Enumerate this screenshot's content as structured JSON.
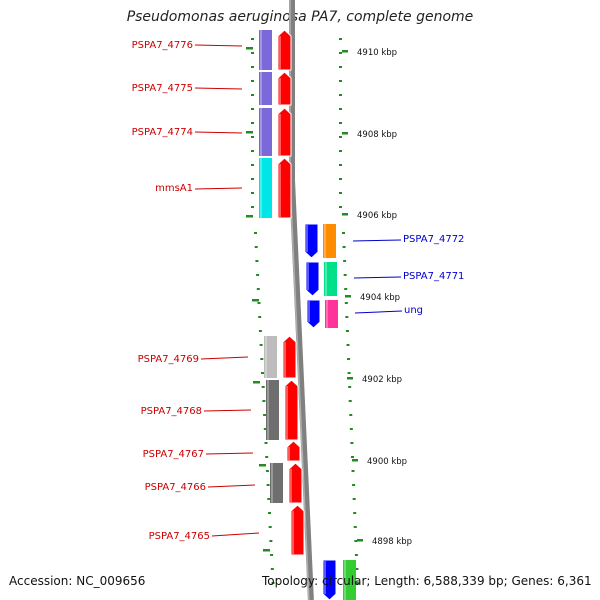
{
  "title": "Pseudomonas aeruginosa PA7, complete genome",
  "footer": {
    "accession": "Accession: NC_009656",
    "topology": "Topology: circular; Length: 6,588,339 bp; Genes: 6,361"
  },
  "colors": {
    "backbone": "#808080",
    "tick": "#228b22",
    "left_label": "#cc0000",
    "right_label": "#0000cc"
  },
  "scale_labels": [
    "4910 kbp",
    "4908 kbp",
    "4906 kbp",
    "4904 kbp",
    "4902 kbp",
    "4900 kbp",
    "4898 kbp"
  ],
  "genes": [
    {
      "label": "PSPA7_4776",
      "side": "left",
      "cog_color": "#7b68d9",
      "strand": "forward"
    },
    {
      "label": "PSPA7_4775",
      "side": "left",
      "cog_color": "#7b68d9",
      "strand": "forward"
    },
    {
      "label": "PSPA7_4774",
      "side": "left",
      "cog_color": "#7b68d9",
      "strand": "forward"
    },
    {
      "label": "mmsA1",
      "side": "left",
      "cog_color": "#00e5e5",
      "strand": "forward"
    },
    {
      "label": "PSPA7_4772",
      "side": "right",
      "cog_color": "#ff8c00",
      "strand": "reverse"
    },
    {
      "label": "PSPA7_4771",
      "side": "right",
      "cog_color": "#00e08a",
      "strand": "reverse"
    },
    {
      "label": "ung",
      "side": "right",
      "cog_color": "#ff3399",
      "strand": "reverse"
    },
    {
      "label": "PSPA7_4769",
      "side": "left",
      "cog_color": "#bdbdbd",
      "strand": "forward"
    },
    {
      "label": "PSPA7_4768",
      "side": "left",
      "cog_color": "#6e6e6e",
      "strand": "forward"
    },
    {
      "label": "PSPA7_4767",
      "side": "left",
      "cog_color": "#ffffff",
      "strand": "forward"
    },
    {
      "label": "PSPA7_4766",
      "side": "left",
      "cog_color": "#6e6e6e",
      "strand": "forward"
    },
    {
      "label": "PSPA7_4765",
      "side": "left",
      "cog_color": "#ffffff",
      "strand": "forward"
    },
    {
      "label": "",
      "side": "right",
      "cog_color": "#33cc33",
      "strand": "reverse"
    }
  ]
}
